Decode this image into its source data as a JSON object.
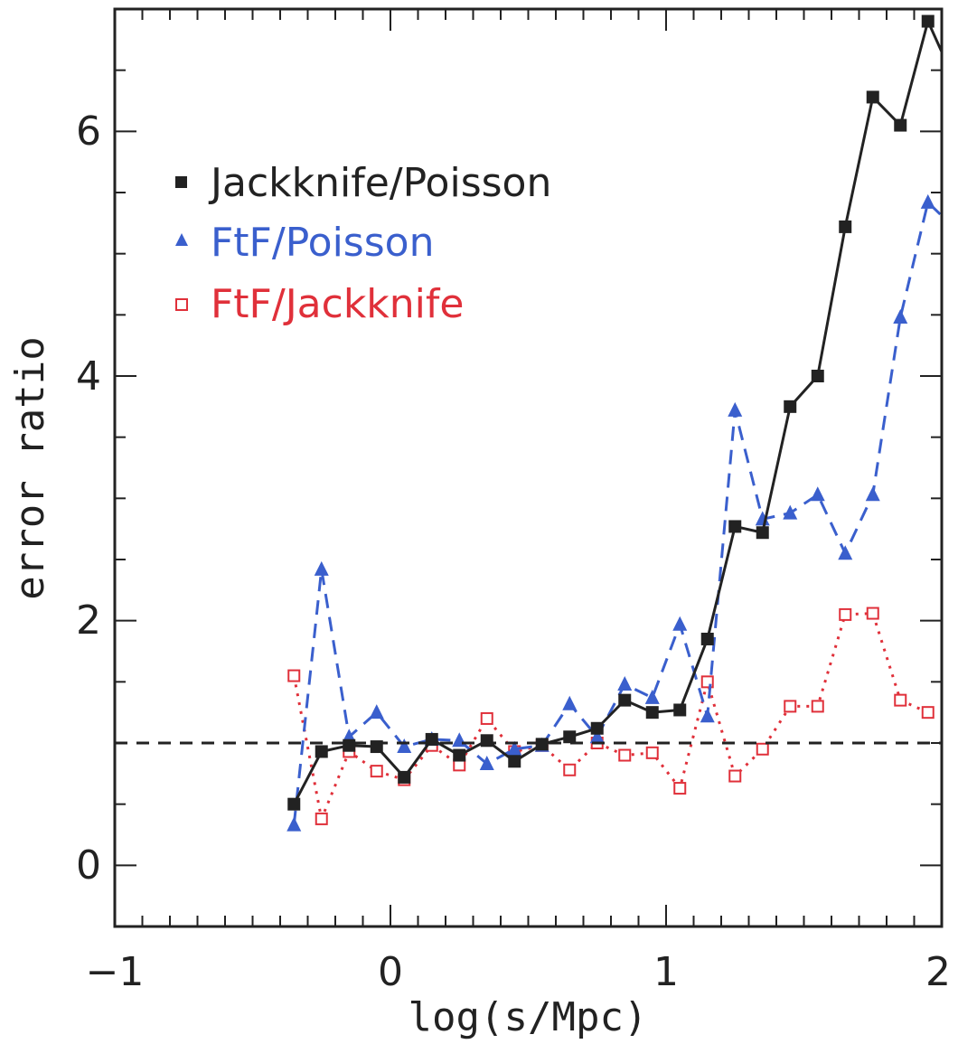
{
  "chart_data": {
    "type": "line",
    "title": "",
    "xlabel": "log(s/Mpc)",
    "ylabel": "error ratio",
    "xlim": [
      -1,
      2
    ],
    "ylim": [
      -0.5,
      7
    ],
    "x_ticks": [
      "−1",
      "0",
      "1",
      "2"
    ],
    "y_ticks": [
      "0",
      "2",
      "4",
      "6"
    ],
    "x_tick_values": [
      -1,
      0,
      1,
      2
    ],
    "y_tick_values": [
      0,
      2,
      4,
      6
    ],
    "grid": false,
    "legend_position": "top-left",
    "reference_line": {
      "y": 1,
      "style": "dashed",
      "color": "#222222"
    },
    "series": [
      {
        "name": "Jackknife/Poisson",
        "color": "#222222",
        "marker": "filled-square",
        "line": "solid",
        "x": [
          -0.35,
          -0.25,
          -0.15,
          -0.05,
          0.05,
          0.15,
          0.25,
          0.35,
          0.45,
          0.55,
          0.65,
          0.75,
          0.85,
          0.95,
          1.05,
          1.15,
          1.25,
          1.35,
          1.45,
          1.55,
          1.65,
          1.75,
          1.85,
          1.95,
          2.05
        ],
        "y": [
          0.5,
          0.93,
          0.98,
          0.97,
          0.72,
          1.03,
          0.9,
          1.02,
          0.85,
          0.99,
          1.05,
          1.12,
          1.35,
          1.25,
          1.27,
          1.85,
          2.77,
          2.72,
          3.75,
          4.0,
          5.22,
          6.28,
          6.05,
          6.9,
          6.4
        ],
        "values": [
          0.5,
          0.93,
          0.98,
          0.97,
          0.72,
          1.03,
          0.9,
          1.02,
          0.85,
          0.99,
          1.05,
          1.12,
          1.35,
          1.25,
          1.27,
          1.85,
          2.77,
          2.72,
          3.75,
          4.0,
          5.22,
          6.28,
          6.05,
          6.9,
          6.4
        ]
      },
      {
        "name": "FtF/Poisson",
        "color": "#3a5fcd",
        "marker": "filled-triangle",
        "line": "dashed",
        "x": [
          -0.35,
          -0.25,
          -0.15,
          -0.05,
          0.05,
          0.15,
          0.25,
          0.35,
          0.45,
          0.55,
          0.65,
          0.75,
          0.85,
          0.95,
          1.05,
          1.15,
          1.25,
          1.35,
          1.45,
          1.55,
          1.65,
          1.75,
          1.85,
          1.95,
          2.05
        ],
        "y": [
          0.33,
          2.42,
          1.05,
          1.25,
          0.97,
          1.03,
          1.02,
          0.83,
          0.95,
          0.98,
          1.32,
          1.05,
          1.48,
          1.37,
          1.97,
          1.22,
          3.72,
          2.83,
          2.88,
          3.03,
          2.55,
          3.03,
          4.48,
          5.42,
          5.2
        ],
        "values": [
          0.33,
          2.42,
          1.05,
          1.25,
          0.97,
          1.03,
          1.02,
          0.83,
          0.95,
          0.98,
          1.32,
          1.05,
          1.48,
          1.37,
          1.97,
          1.22,
          3.72,
          2.83,
          2.88,
          3.03,
          2.55,
          3.03,
          4.48,
          5.42,
          5.2
        ]
      },
      {
        "name": "FtF/Jackknife",
        "color": "#e0303a",
        "marker": "open-square",
        "line": "dotted",
        "x": [
          -0.35,
          -0.25,
          -0.15,
          -0.05,
          0.05,
          0.15,
          0.25,
          0.35,
          0.45,
          0.55,
          0.65,
          0.75,
          0.85,
          0.95,
          1.05,
          1.15,
          1.25,
          1.35,
          1.45,
          1.55,
          1.65,
          1.75,
          1.85,
          1.95
        ],
        "y": [
          1.55,
          0.38,
          0.93,
          0.77,
          0.7,
          0.98,
          0.82,
          1.2,
          0.93,
          0.98,
          0.78,
          1.0,
          0.9,
          0.92,
          0.63,
          1.5,
          0.73,
          0.95,
          1.3,
          1.3,
          2.05,
          2.06,
          1.35,
          1.25
        ],
        "values": [
          1.55,
          0.38,
          0.93,
          0.77,
          0.7,
          0.98,
          0.82,
          1.2,
          0.93,
          0.98,
          0.78,
          1.0,
          0.9,
          0.92,
          0.63,
          1.5,
          0.73,
          0.95,
          1.3,
          1.3,
          2.05,
          2.06,
          1.35,
          1.25
        ]
      }
    ]
  }
}
